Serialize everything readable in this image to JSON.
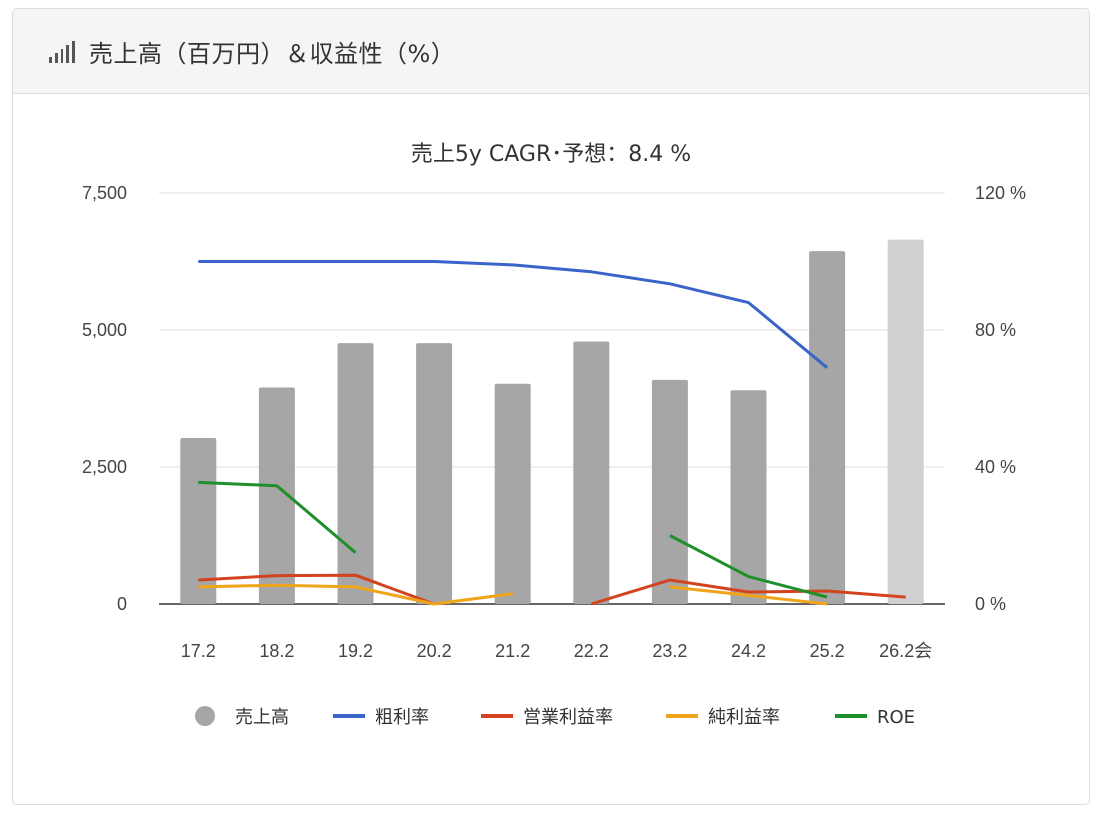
{
  "header": {
    "title": "売上高（百万円）＆収益性（%）",
    "icon": "bar-signal-icon"
  },
  "chart_data": {
    "type": "bar",
    "title": "売上5y CAGR･予想：8.4 %",
    "categories": [
      "17.2",
      "18.2",
      "19.2",
      "20.2",
      "21.2",
      "22.2",
      "23.2",
      "24.2",
      "25.2",
      "26.2会"
    ],
    "y_left": {
      "min": 0,
      "max": 7500,
      "ticks": [
        "0",
        "2,500",
        "5,000",
        "7,500"
      ],
      "tick_values": [
        0,
        2500,
        5000,
        7500
      ]
    },
    "y_right": {
      "min": 0,
      "max": 120,
      "ticks": [
        "0 %",
        "40 %",
        "80 %",
        "120 %"
      ],
      "tick_values": [
        0,
        40,
        80,
        120
      ]
    },
    "bars": {
      "name": "売上高",
      "values": [
        3030,
        3950,
        4760,
        4760,
        4020,
        4790,
        4090,
        3900,
        6440,
        6650
      ],
      "color": "#a6a6a6",
      "forecast_color": "#d0d0d0",
      "forecast_index": 9
    },
    "lines": [
      {
        "name": "粗利率",
        "color": "#3a64c9",
        "axis": "right",
        "values": [
          100,
          100,
          100,
          100,
          99,
          97,
          93.5,
          88,
          69,
          null
        ]
      },
      {
        "name": "営業利益率",
        "color": "#d3431f",
        "axis": "right",
        "values": [
          7,
          8.3,
          8.4,
          0,
          null,
          0,
          7,
          3.5,
          3.8,
          2
        ]
      },
      {
        "name": "純利益率",
        "color": "#f0a419",
        "axis": "right",
        "values": [
          5,
          5.5,
          5,
          0,
          3,
          null,
          5,
          2.5,
          0,
          null
        ]
      },
      {
        "name": "ROE",
        "color": "#1f8f2a",
        "axis": "right",
        "values": [
          35.5,
          34.5,
          15,
          null,
          null,
          null,
          20,
          8,
          2,
          null
        ]
      }
    ],
    "legend_position": "bottom",
    "grid": true
  }
}
